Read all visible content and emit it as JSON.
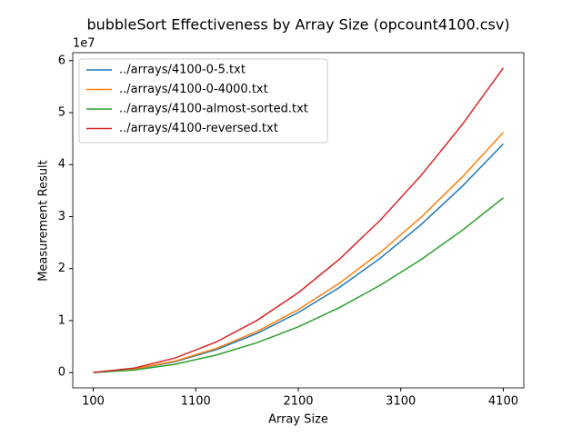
{
  "chart_data": {
    "type": "line",
    "title": "bubbleSort Effectiveness by Array Size (opcount4100.csv)",
    "x_label": "Array Size",
    "y_label": "Measurement Result",
    "y_offset_label": "1e7",
    "x": [
      100,
      500,
      900,
      1300,
      1700,
      2100,
      2500,
      2900,
      3300,
      3700,
      4100
    ],
    "series": [
      {
        "name": "../arrays/4100-0-5.txt",
        "color": "#1f77b4",
        "values": [
          26000,
          654000,
          2120000,
          4424000,
          7564000,
          11543000,
          16359000,
          22013000,
          28505000,
          35834000,
          44000000
        ]
      },
      {
        "name": "../arrays/4100-0-4000.txt",
        "color": "#ff7f0e",
        "values": [
          27000,
          687000,
          2226000,
          4645000,
          7943000,
          12120000,
          17177000,
          23114000,
          29930000,
          37625000,
          46200000
        ]
      },
      {
        "name": "../arrays/4100-almost-sorted.txt",
        "color": "#2ca02c",
        "values": [
          20000,
          500000,
          1619000,
          3378000,
          5777000,
          8815000,
          12492000,
          16810000,
          21767000,
          27364000,
          33600000
        ]
      },
      {
        "name": "../arrays/4100-reversed.txt",
        "color": "#d62728",
        "values": [
          35000,
          871000,
          2824000,
          5892000,
          10075000,
          15373000,
          21787000,
          29318000,
          37963000,
          47724000,
          58600000
        ]
      }
    ],
    "xlim": [
      -100,
      4300
    ],
    "ylim": [
      -2930000,
      61530000
    ],
    "xticks": [
      100,
      1100,
      2100,
      3100,
      4100
    ],
    "yticks": [
      {
        "value": 0,
        "label": "0"
      },
      {
        "value": 10000000,
        "label": "1"
      },
      {
        "value": 20000000,
        "label": "2"
      },
      {
        "value": 30000000,
        "label": "3"
      },
      {
        "value": 40000000,
        "label": "4"
      },
      {
        "value": 50000000,
        "label": "5"
      },
      {
        "value": 60000000,
        "label": "6"
      }
    ],
    "grid": false,
    "legend": "upper-left"
  }
}
